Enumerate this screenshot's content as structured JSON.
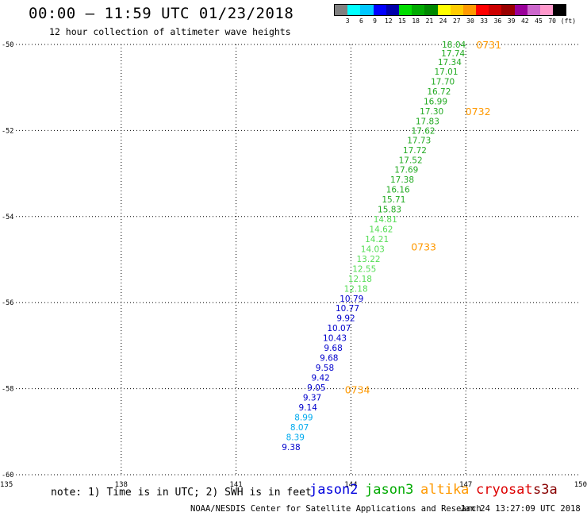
{
  "header": {
    "title": "00:00 – 11:59 UTC 01/23/2018",
    "subtitle": "12 hour collection of altimeter wave heights"
  },
  "colorbar": {
    "colors": [
      "#808080",
      "#00ffff",
      "#00c8ff",
      "#0000ff",
      "#0000aa",
      "#00dd00",
      "#00aa00",
      "#008800",
      "#ffff00",
      "#ffcc00",
      "#ff9900",
      "#ff0000",
      "#cc0000",
      "#990000",
      "#990099",
      "#cc66cc",
      "#ff99cc",
      "#000000"
    ],
    "labels": [
      "3",
      "6",
      "9",
      "12",
      "15",
      "18",
      "21",
      "24",
      "27",
      "30",
      "33",
      "36",
      "39",
      "42",
      "45",
      "70",
      "(ft)"
    ]
  },
  "axes": {
    "x_ticks": [
      "135",
      "138",
      "141",
      "144",
      "147",
      "150"
    ],
    "y_ticks": [
      "-50",
      "-52",
      "-54",
      "-56",
      "-58",
      "-60"
    ]
  },
  "chart_data": {
    "type": "scatter",
    "title": "00:00 – 11:59 UTC 01/23/2018",
    "subtitle": "12 hour collection of altimeter wave heights",
    "x_label": "",
    "y_label": "",
    "xlim": [
      135,
      150
    ],
    "ylim": [
      -60,
      -50
    ],
    "grid": true,
    "wave_heights_ft": [
      {
        "lon": 147.0,
        "lat": -50.0,
        "value": "18.04",
        "color": "#22aa22"
      },
      {
        "lon": 146.98,
        "lat": -50.2,
        "value": "17.74",
        "color": "#22aa22"
      },
      {
        "lon": 146.89,
        "lat": -50.41,
        "value": "17.34",
        "color": "#22aa22"
      },
      {
        "lon": 146.8,
        "lat": -50.63,
        "value": "17.01",
        "color": "#22aa22"
      },
      {
        "lon": 146.71,
        "lat": -50.86,
        "value": "17.70",
        "color": "#22aa22"
      },
      {
        "lon": 146.61,
        "lat": -51.09,
        "value": "16.72",
        "color": "#22aa22"
      },
      {
        "lon": 146.52,
        "lat": -51.32,
        "value": "16.99",
        "color": "#22aa22"
      },
      {
        "lon": 146.42,
        "lat": -51.55,
        "value": "17.30",
        "color": "#22aa22"
      },
      {
        "lon": 146.31,
        "lat": -51.78,
        "value": "17.83",
        "color": "#22aa22"
      },
      {
        "lon": 146.2,
        "lat": -52.0,
        "value": "17.62",
        "color": "#22aa22"
      },
      {
        "lon": 146.09,
        "lat": -52.22,
        "value": "17.73",
        "color": "#22aa22"
      },
      {
        "lon": 145.98,
        "lat": -52.45,
        "value": "17.72",
        "color": "#22aa22"
      },
      {
        "lon": 145.87,
        "lat": -52.68,
        "value": "17.52",
        "color": "#22aa22"
      },
      {
        "lon": 145.76,
        "lat": -52.91,
        "value": "17.69",
        "color": "#22aa22"
      },
      {
        "lon": 145.65,
        "lat": -53.14,
        "value": "17.38",
        "color": "#22aa22"
      },
      {
        "lon": 145.54,
        "lat": -53.37,
        "value": "16.16",
        "color": "#22aa22"
      },
      {
        "lon": 145.43,
        "lat": -53.6,
        "value": "15.71",
        "color": "#22aa22"
      },
      {
        "lon": 145.32,
        "lat": -53.83,
        "value": "15.83",
        "color": "#22aa22"
      },
      {
        "lon": 145.21,
        "lat": -54.06,
        "value": "14.81",
        "color": "#55dd55"
      },
      {
        "lon": 145.1,
        "lat": -54.29,
        "value": "14.62",
        "color": "#55dd55"
      },
      {
        "lon": 144.99,
        "lat": -54.52,
        "value": "14.21",
        "color": "#55dd55"
      },
      {
        "lon": 144.88,
        "lat": -54.75,
        "value": "14.03",
        "color": "#55dd55"
      },
      {
        "lon": 144.77,
        "lat": -54.98,
        "value": "13.22",
        "color": "#55dd55"
      },
      {
        "lon": 144.66,
        "lat": -55.21,
        "value": "12.55",
        "color": "#55dd55"
      },
      {
        "lon": 144.55,
        "lat": -55.44,
        "value": "12.18",
        "color": "#55dd55"
      },
      {
        "lon": 144.44,
        "lat": -55.67,
        "value": "12.18",
        "color": "#55dd55"
      },
      {
        "lon": 144.33,
        "lat": -55.9,
        "value": "10.79",
        "color": "#0000cc"
      },
      {
        "lon": 144.22,
        "lat": -56.13,
        "value": "10.77",
        "color": "#0000cc"
      },
      {
        "lon": 144.11,
        "lat": -56.36,
        "value": "9.92",
        "color": "#0000cc"
      },
      {
        "lon": 144.0,
        "lat": -56.59,
        "value": "10.07",
        "color": "#0000cc"
      },
      {
        "lon": 143.89,
        "lat": -56.82,
        "value": "10.43",
        "color": "#0000cc"
      },
      {
        "lon": 143.78,
        "lat": -57.05,
        "value": "9.68",
        "color": "#0000cc"
      },
      {
        "lon": 143.67,
        "lat": -57.28,
        "value": "9.68",
        "color": "#0000cc"
      },
      {
        "lon": 143.56,
        "lat": -57.51,
        "value": "9.58",
        "color": "#0000cc"
      },
      {
        "lon": 143.45,
        "lat": -57.74,
        "value": "9.42",
        "color": "#0000cc"
      },
      {
        "lon": 143.34,
        "lat": -57.97,
        "value": "9.05",
        "color": "#0000cc"
      },
      {
        "lon": 143.23,
        "lat": -58.2,
        "value": "9.37",
        "color": "#0000cc"
      },
      {
        "lon": 143.12,
        "lat": -58.43,
        "value": "9.14",
        "color": "#0000cc"
      },
      {
        "lon": 143.01,
        "lat": -58.66,
        "value": "8.99",
        "color": "#00aaee"
      },
      {
        "lon": 142.9,
        "lat": -58.89,
        "value": "8.07",
        "color": "#00aaee"
      },
      {
        "lon": 142.79,
        "lat": -59.12,
        "value": "8.39",
        "color": "#00aaee"
      },
      {
        "lon": 142.68,
        "lat": -59.35,
        "value": "9.38",
        "color": "#0000cc"
      }
    ],
    "time_labels": [
      {
        "lon": 147.6,
        "lat": -50.0,
        "value": "0731"
      },
      {
        "lon": 147.32,
        "lat": -51.55,
        "value": "0732"
      },
      {
        "lon": 145.9,
        "lat": -54.7,
        "value": "0733"
      },
      {
        "lon": 144.17,
        "lat": -58.02,
        "value": "0734"
      }
    ]
  },
  "legend": {
    "note": "note: 1) Time is in UTC; 2) SWH is in feet",
    "satellites": [
      {
        "name": "jason2",
        "color": "#0000dd"
      },
      {
        "name": "jason3",
        "color": "#00aa00"
      },
      {
        "name": "altika",
        "color": "#ff9900"
      },
      {
        "name": "cryosat",
        "color": "#dd0000"
      },
      {
        "name": "s3a",
        "color": "#880000"
      }
    ]
  },
  "footer": {
    "center": "NOAA/NESDIS Center for Satellite Applications and Research",
    "right": "Jan 24 13:27:09 UTC 2018"
  }
}
